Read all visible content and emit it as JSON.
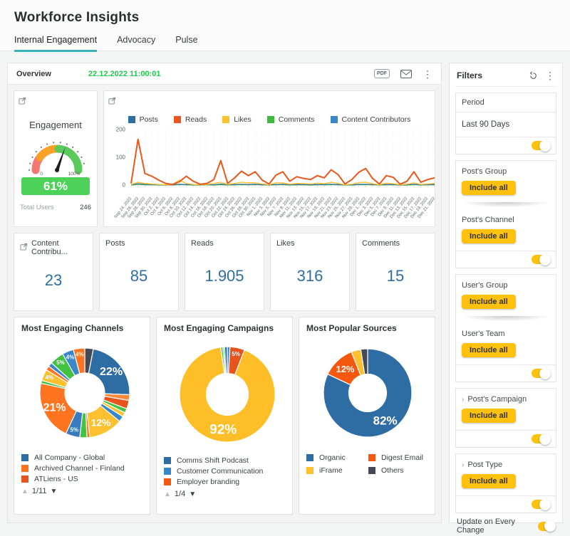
{
  "header": {
    "title": "Workforce Insights",
    "tabs": [
      {
        "label": "Internal Engagement",
        "active": true
      },
      {
        "label": "Advocacy",
        "active": false
      },
      {
        "label": "Pulse",
        "active": false
      }
    ]
  },
  "overview_bar": {
    "title": "Overview",
    "timestamp": "22.12.2022 11:00:01",
    "pdf_label": "PDF"
  },
  "kpis": [
    {
      "label": "Content Contribu...",
      "value": "23",
      "expand": true
    },
    {
      "label": "Posts",
      "value": "85",
      "expand": false
    },
    {
      "label": "Reads",
      "value": "1.905",
      "expand": false
    },
    {
      "label": "Likes",
      "value": "316",
      "expand": false
    },
    {
      "label": "Comments",
      "value": "15",
      "expand": false
    }
  ],
  "chart_data": [
    {
      "id": "engagement-gauge",
      "type": "gauge",
      "title": "Engagement",
      "percent": 61,
      "value_label": "61%",
      "min_label": "0",
      "max_label": "100%",
      "arc_segments": [
        {
          "from": 180,
          "to": 141,
          "color": "#f57670"
        },
        {
          "from": 143,
          "to": 84,
          "color": "#faa125"
        },
        {
          "from": 86,
          "to": 0,
          "color": "#5bc95b"
        }
      ],
      "badge_color": "#4ed158",
      "footer_label": "Total Users",
      "footer_value": "246"
    },
    {
      "id": "engagement-timeline",
      "type": "line",
      "ylim": [
        0,
        200
      ],
      "yticks": [
        0,
        100,
        200
      ],
      "grid": "vertical",
      "categories": [
        "Sep 24, 2022",
        "Sep 26, 2022",
        "Sep 28, 2022",
        "Sep 30, 2022",
        "Oct 2, 2022",
        "Oct 4, 2022",
        "Oct 6, 2022",
        "Oct 8, 2022",
        "Oct 10, 2022",
        "Oct 12, 2022",
        "Oct 14, 2022",
        "Oct 16, 2022",
        "Oct 18, 2022",
        "Oct 20, 2022",
        "Oct 22, 2022",
        "Oct 24, 2022",
        "Oct 26, 2022",
        "Oct 28, 2022",
        "Oct 30, 2022",
        "Nov 1, 2022",
        "Nov 3, 2022",
        "Nov 5, 2022",
        "Nov 7, 2022",
        "Nov 9, 2022",
        "Nov 11, 2022",
        "Nov 13, 2022",
        "Nov 15, 2022",
        "Nov 17, 2022",
        "Nov 19, 2022",
        "Nov 21, 2022",
        "Nov 23, 2022",
        "Nov 25, 2022",
        "Nov 27, 2022",
        "Nov 29, 2022",
        "Dec 1, 2022",
        "Dec 3, 2022",
        "Dec 5, 2022",
        "Dec 7, 2022",
        "Dec 9, 2022",
        "Dec 11, 2022",
        "Dec 13, 2022",
        "Dec 15, 2022",
        "Dec 17, 2022",
        "Dec 19, 2022",
        "Dec 21, 2022"
      ],
      "series": [
        {
          "name": "Posts",
          "color": "#2e6da4",
          "values": [
            1,
            5,
            3,
            2,
            1,
            1,
            1,
            3,
            2,
            1,
            1,
            2,
            1,
            4,
            1,
            2,
            3,
            2,
            3,
            1,
            1,
            2,
            3,
            1,
            2,
            2,
            1,
            2,
            2,
            3,
            2,
            1,
            1,
            3,
            3,
            2,
            1,
            2,
            2,
            1,
            1,
            3,
            1,
            2,
            2
          ]
        },
        {
          "name": "Reads",
          "color": "#e8581c",
          "values": [
            6,
            165,
            42,
            32,
            18,
            6,
            2,
            12,
            32,
            14,
            3,
            6,
            20,
            88,
            6,
            26,
            50,
            34,
            48,
            18,
            4,
            36,
            48,
            14,
            30,
            24,
            20,
            34,
            26,
            55,
            38,
            4,
            20,
            46,
            60,
            24,
            4,
            34,
            28,
            3,
            14,
            48,
            10,
            20,
            26
          ]
        },
        {
          "name": "Likes",
          "color": "#fdc02f",
          "values": [
            2,
            10,
            6,
            4,
            2,
            1,
            1,
            18,
            6,
            2,
            1,
            2,
            6,
            10,
            2,
            6,
            10,
            8,
            8,
            4,
            1,
            8,
            8,
            3,
            6,
            5,
            4,
            7,
            5,
            10,
            6,
            1,
            3,
            9,
            10,
            5,
            1,
            7,
            5,
            1,
            3,
            8,
            2,
            4,
            6
          ]
        },
        {
          "name": "Comments",
          "color": "#3dbb3d",
          "values": [
            0,
            3,
            1,
            1,
            0,
            0,
            0,
            2,
            1,
            0,
            0,
            1,
            0,
            2,
            0,
            1,
            2,
            1,
            2,
            1,
            0,
            1,
            2,
            0,
            1,
            1,
            0,
            1,
            1,
            2,
            1,
            0,
            0,
            2,
            2,
            1,
            0,
            1,
            1,
            0,
            0,
            2,
            0,
            1,
            1
          ]
        },
        {
          "name": "Content Contributors",
          "color": "#3a87c8",
          "values": [
            1,
            4,
            2,
            2,
            1,
            1,
            1,
            2,
            2,
            1,
            1,
            2,
            1,
            3,
            1,
            2,
            2,
            2,
            2,
            1,
            1,
            2,
            2,
            1,
            2,
            2,
            1,
            2,
            2,
            2,
            2,
            1,
            1,
            2,
            2,
            2,
            1,
            2,
            2,
            1,
            1,
            2,
            1,
            2,
            2
          ]
        }
      ]
    },
    {
      "id": "channels-donut",
      "type": "pie",
      "title": "Most Engaging Channels",
      "slices": [
        {
          "value": 3,
          "color": "#434a54"
        },
        {
          "value": 22,
          "color": "#2e6da4",
          "label": "22%",
          "labelSize": 16
        },
        {
          "value": 2,
          "color": "#ff8a3c"
        },
        {
          "value": 3,
          "color": "#e8541d"
        },
        {
          "value": 1.5,
          "color": "#41c241"
        },
        {
          "value": 1.5,
          "color": "#fdc02f"
        },
        {
          "value": 2,
          "color": "#3a87c8"
        },
        {
          "value": 12,
          "color": "#fdc02f",
          "label": "12%",
          "labelSize": 14
        },
        {
          "value": 1,
          "color": "#ff7420"
        },
        {
          "value": 2.5,
          "color": "#41c241"
        },
        {
          "value": 5,
          "color": "#3a7abf",
          "label": "5%",
          "labelSize": 8
        },
        {
          "value": 21,
          "color": "#ff7420",
          "label": "21%",
          "labelSize": 16
        },
        {
          "value": 1,
          "color": "#41c241"
        },
        {
          "value": 4,
          "color": "#fdc02f",
          "label": "4%",
          "labelSize": 8
        },
        {
          "value": 1.5,
          "color": "#ff7420"
        },
        {
          "value": 1.5,
          "color": "#3a87c8"
        },
        {
          "value": 5,
          "color": "#41c241",
          "label": "5%",
          "labelSize": 8
        },
        {
          "value": 4,
          "color": "#3a87c8",
          "label": "4%",
          "labelSize": 8
        },
        {
          "value": 4,
          "color": "#ff7420",
          "label": "4%",
          "labelSize": 8
        }
      ],
      "legend": [
        {
          "label": "All Company - Global",
          "color": "#2e6da4"
        },
        {
          "label": "Archived Channel - Finland",
          "color": "#ff7420"
        },
        {
          "label": "ATLiens - US",
          "color": "#e8541d"
        }
      ],
      "legend_columns": 1,
      "pagination": "1/11"
    },
    {
      "id": "campaigns-donut",
      "type": "pie",
      "title": "Most Engaging Campaigns",
      "slices": [
        {
          "value": 0.9,
          "color": "#3a87c8"
        },
        {
          "value": 5,
          "color": "#e8541d",
          "label": "5%",
          "labelSize": 8
        },
        {
          "value": 92,
          "color": "#fdbe27",
          "label": "92%",
          "labelSize": 19
        },
        {
          "value": 0.7,
          "color": "#41c241"
        },
        {
          "value": 0.6,
          "color": "#8fd98f"
        },
        {
          "value": 0.9,
          "color": "#2e6da4"
        }
      ],
      "legend": [
        {
          "label": "Comms Shift Podcast",
          "color": "#2e6da4"
        },
        {
          "label": "Customer Communication",
          "color": "#3a87c8"
        },
        {
          "label": "Employer branding",
          "color": "#f4590f"
        }
      ],
      "legend_columns": 1,
      "pagination": "1/4"
    },
    {
      "id": "sources-donut",
      "type": "pie",
      "title": "Most Popular Sources",
      "slices": [
        {
          "value": 82,
          "color": "#2e6da4",
          "label": "82%",
          "labelSize": 17
        },
        {
          "value": 12,
          "color": "#f4590f",
          "label": "12%",
          "labelSize": 13
        },
        {
          "value": 3.5,
          "color": "#fdc02f"
        },
        {
          "value": 2.5,
          "color": "#434a54"
        }
      ],
      "legend": [
        {
          "label": "Organic",
          "color": "#2e6da4"
        },
        {
          "label": "Digest Email",
          "color": "#f4590f"
        },
        {
          "label": "iFrame",
          "color": "#fdc02f"
        },
        {
          "label": "Others",
          "color": "#434a54"
        }
      ],
      "legend_columns": 2,
      "pagination": null
    }
  ],
  "filters": {
    "title": "Filters",
    "groups": [
      {
        "id": "period",
        "header": "Period",
        "value": "Last 90 Days",
        "sections": [],
        "toggle": true
      },
      {
        "id": "post-group-channel",
        "sections": [
          {
            "label": "Post's Group",
            "chip": "Include all",
            "chevron": false
          },
          {
            "label": "Post's Channel",
            "chip": "Include all",
            "chevron": false
          }
        ],
        "toggle": true
      },
      {
        "id": "user-group-team",
        "sections": [
          {
            "label": "User's Group",
            "chip": "Include all",
            "chevron": false
          },
          {
            "label": "User's Team",
            "chip": "Include all",
            "chevron": false
          }
        ],
        "toggle": true
      },
      {
        "id": "post-campaign",
        "sections": [
          {
            "label": "Post's Campaign",
            "chip": "Include all",
            "chevron": true
          }
        ],
        "toggle": true
      },
      {
        "id": "post-type",
        "sections": [
          {
            "label": "Post Type",
            "chip": "Include all",
            "chevron": true
          }
        ],
        "toggle": true
      }
    ],
    "footer": {
      "label": "Update on Every Change",
      "toggle": true
    }
  }
}
